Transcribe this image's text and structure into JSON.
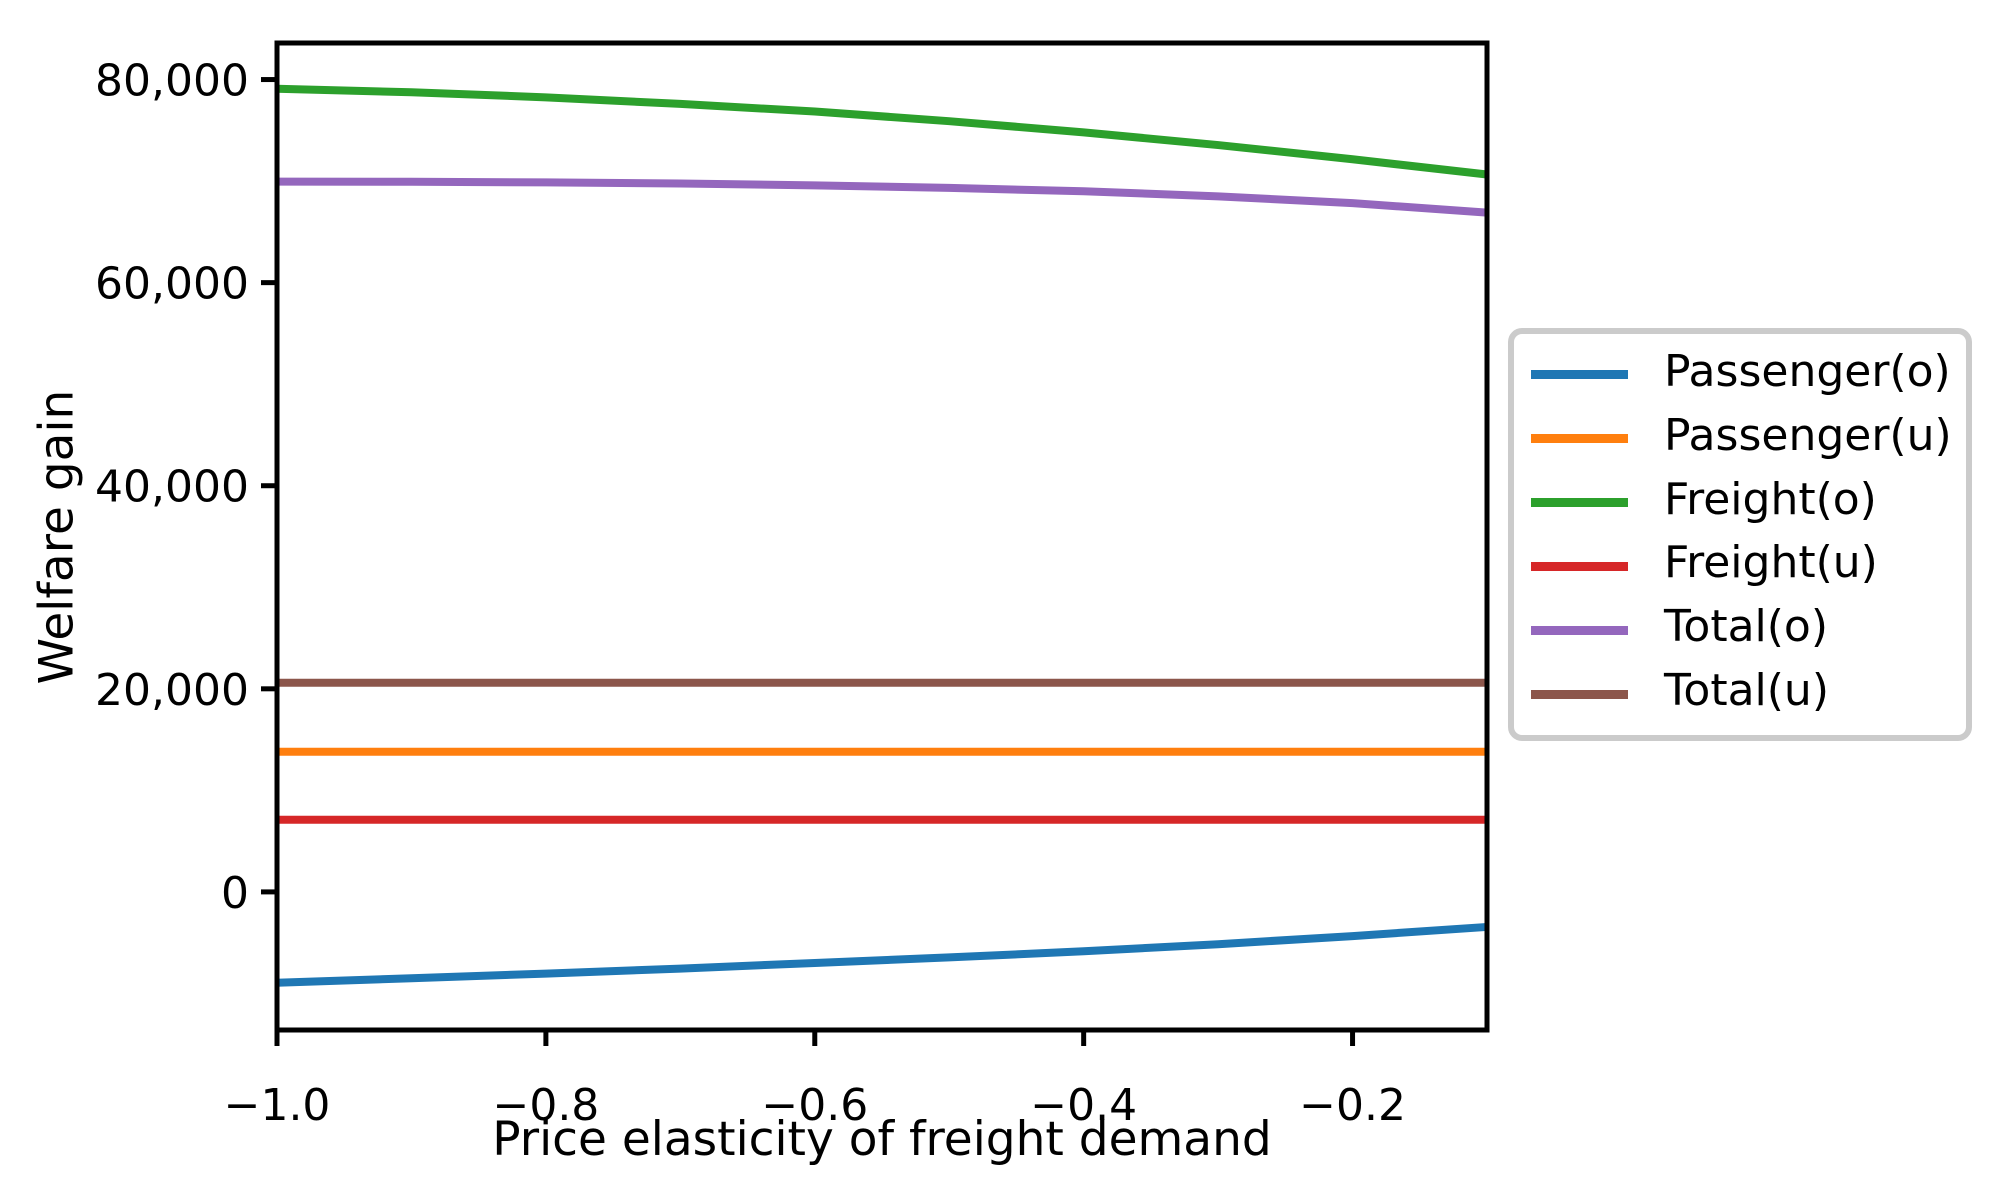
{
  "chart_data": {
    "type": "line",
    "title": "",
    "xlabel": "Price elasticity of freight demand",
    "ylabel": "Welfare gain",
    "xlim": [
      -1.0,
      -0.1
    ],
    "ylim": [
      -13600,
      83600
    ],
    "grid": false,
    "legend_position": "right-outside",
    "background_color": "#ffffff",
    "axis_color": "#000000",
    "x": [
      -1.0,
      -0.9,
      -0.8,
      -0.7,
      -0.6,
      -0.5,
      -0.4,
      -0.3,
      -0.2,
      -0.1
    ],
    "series": [
      {
        "name": "Passenger(o)",
        "color": "#1f77b4",
        "values": [
          -8950,
          -8500,
          -8050,
          -7550,
          -7000,
          -6450,
          -5850,
          -5150,
          -4350,
          -3450
        ]
      },
      {
        "name": "Passenger(u)",
        "color": "#ff7f0e",
        "values": [
          13800,
          13800,
          13800,
          13800,
          13800,
          13800,
          13800,
          13800,
          13800,
          13800
        ]
      },
      {
        "name": "Freight(o)",
        "color": "#2ca02c",
        "values": [
          79100,
          78750,
          78250,
          77600,
          76850,
          75900,
          74800,
          73550,
          72150,
          70650
        ]
      },
      {
        "name": "Freight(u)",
        "color": "#d62728",
        "values": [
          7100,
          7100,
          7100,
          7100,
          7100,
          7100,
          7100,
          7100,
          7100,
          7100
        ]
      },
      {
        "name": "Total(o)",
        "color": "#9467bd",
        "values": [
          69950,
          69930,
          69870,
          69760,
          69580,
          69330,
          69000,
          68500,
          67830,
          66900
        ]
      },
      {
        "name": "Total(u)",
        "color": "#8c564b",
        "values": [
          20600,
          20600,
          20600,
          20600,
          20600,
          20600,
          20600,
          20600,
          20600,
          20600
        ]
      }
    ],
    "xticks": {
      "values": [
        -1.0,
        -0.8,
        -0.6,
        -0.4,
        -0.2
      ],
      "labels": [
        "−1.0",
        "−0.8",
        "−0.6",
        "−0.4",
        "−0.2"
      ]
    },
    "yticks": {
      "values": [
        0,
        20000,
        40000,
        60000,
        80000
      ],
      "labels": [
        "0",
        "20,000",
        "40,000",
        "60,000",
        "80,000"
      ]
    }
  }
}
